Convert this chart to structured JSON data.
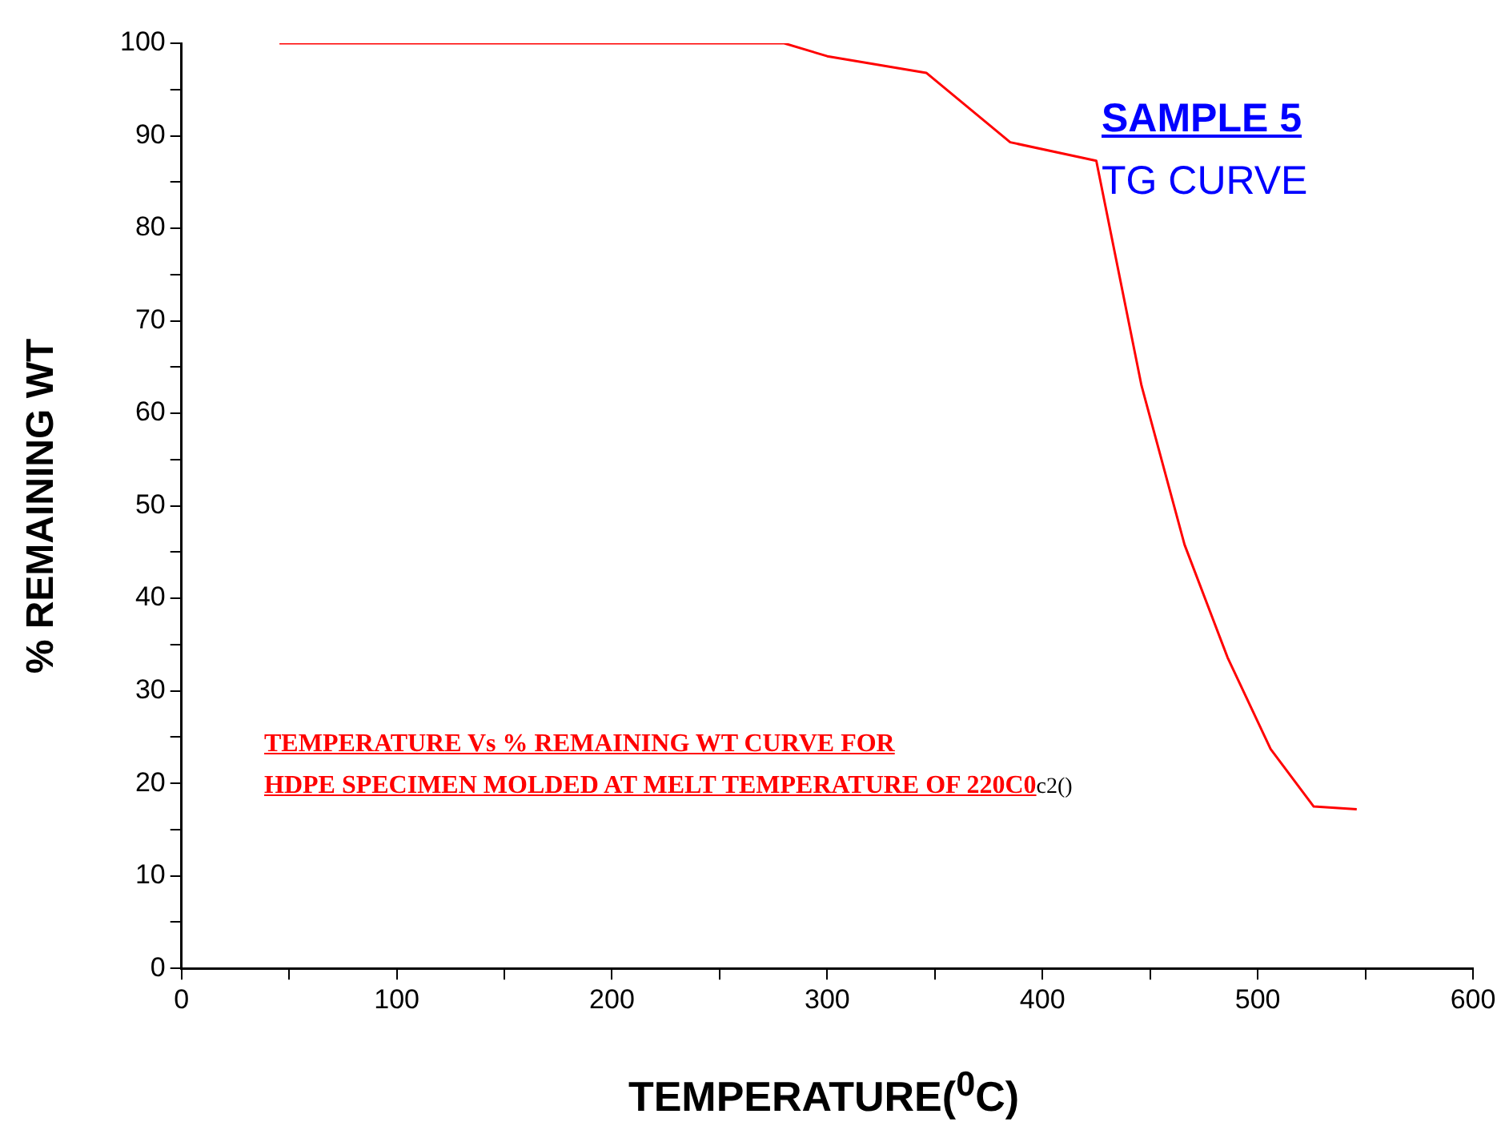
{
  "chart_data": {
    "type": "line",
    "xlabel": "TEMPERATURE($^{0}$C)",
    "ylabel": "% REMAINING WT",
    "annotations": [
      "SAMPLE 5",
      "TG CURVE",
      "TEMPERATURE Vs % REMAINING WT CURVE FOR",
      "HDPE SPECIMEN MOLDED AT MELT TEMPERATURE OF 220C0",
      "c2()"
    ],
    "series": [
      {
        "color": "#ff0000",
        "x": [
          45.5,
          280,
          300,
          346,
          385,
          425,
          446,
          466,
          486,
          506,
          526,
          546
        ],
        "values": [
          100,
          100,
          98.6,
          96.8,
          89.3,
          87.3,
          63,
          45.8,
          33.6,
          23.7,
          17.5,
          17.2
        ]
      }
    ],
    "xlim": [
      0,
      600
    ],
    "xticks": [
      0,
      {
        "value": 50,
        "label": null
      },
      100,
      {
        "value": 150,
        "label": null
      },
      200,
      {
        "value": 250,
        "label": null
      },
      300,
      {
        "value": 350,
        "label": null
      },
      400,
      {
        "value": 450,
        "label": null
      },
      500,
      {
        "value": 550,
        "label": null
      },
      600
    ],
    "ylim": [
      0,
      100
    ],
    "yticks": [
      0,
      {
        "value": 5,
        "label": null
      },
      10,
      {
        "value": 15,
        "label": null
      },
      20,
      {
        "value": 25,
        "label": null
      },
      30,
      {
        "value": 35,
        "label": null
      },
      40,
      {
        "value": 45,
        "label": null
      },
      50,
      {
        "value": 55,
        "label": null
      },
      60,
      {
        "value": 65,
        "label": null
      },
      70,
      {
        "value": 75,
        "label": null
      },
      80,
      {
        "value": 85,
        "label": null
      },
      90,
      {
        "value": 95,
        "label": null
      },
      100
    ],
    "grid": false,
    "legend": false,
    "marker": "none",
    "line_style": "solid"
  }
}
